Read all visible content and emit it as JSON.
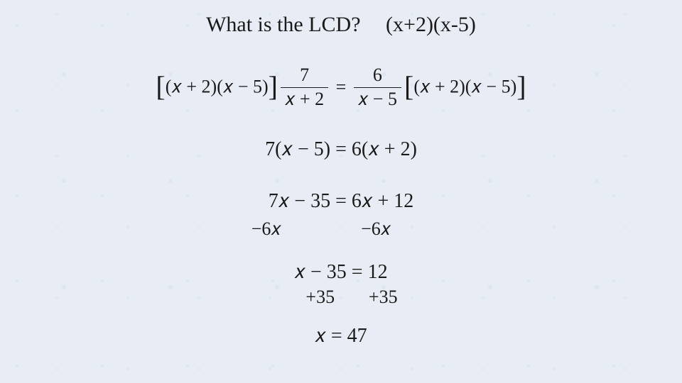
{
  "colors": {
    "background": "#e8edf5",
    "text": "#1a1a1a",
    "fraction_bar": "#1a1a1a"
  },
  "typography": {
    "font_family": "Times New Roman",
    "title_fontsize": 30,
    "body_fontsize": 28
  },
  "title": {
    "question": "What is the LCD?",
    "answer": "(x+2)(x-5)"
  },
  "equation_line1": {
    "left_bracket_open": "[",
    "left_factor": "(𝑥 + 2)(𝑥 − 5)",
    "left_bracket_close": "]",
    "frac1_num": "7",
    "frac1_den": "𝑥 + 2",
    "equals": "=",
    "frac2_num": "6",
    "frac2_den": "𝑥 − 5",
    "right_bracket_open": "[",
    "right_factor": "(𝑥 + 2)(𝑥 − 5)",
    "right_bracket_close": "]"
  },
  "step2": "7(𝑥 − 5) = 6(𝑥 + 2)",
  "step3": {
    "main": "7𝑥 − 35 = 6𝑥 + 12",
    "sub_left": "−6𝑥",
    "sub_right": "−6𝑥"
  },
  "step4": {
    "main": "𝑥 − 35 = 12",
    "add_left": "+35",
    "add_right": "+35"
  },
  "result": "𝑥 = 47"
}
